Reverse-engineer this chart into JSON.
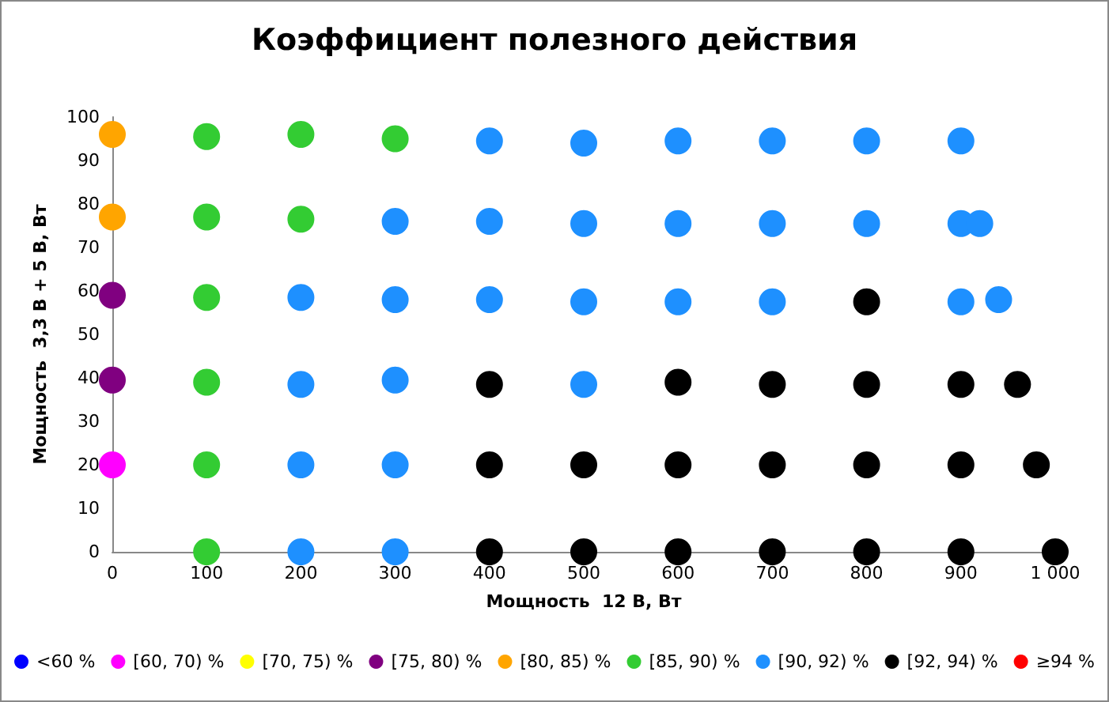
{
  "chart_data": {
    "type": "scatter",
    "title": "Коэффициент полезного действия",
    "xlabel": "Мощность  12 В, Вт",
    "ylabel": "Мощность  3,3 В + 5 В, Вт",
    "xlim": [
      0,
      1000
    ],
    "xticks": [
      0,
      100,
      200,
      300,
      400,
      500,
      600,
      700,
      800,
      900,
      {
        "value": 1000,
        "label": "1 000"
      }
    ],
    "ylim": [
      0,
      100
    ],
    "yticks": [
      0,
      10,
      20,
      30,
      40,
      50,
      60,
      70,
      80,
      90,
      100
    ],
    "grid": false,
    "legend": "bottom",
    "marker": "circle",
    "series": [
      {
        "name": "<60 %",
        "color": "#0000ff"
      },
      {
        "name": "[60, 70) %",
        "color": "#ff00ff",
        "x": [
          0
        ],
        "values": [
          20
        ]
      },
      {
        "name": "[70, 75) %",
        "color": "#ffff00"
      },
      {
        "name": "[75, 80) %",
        "color": "#800080",
        "x": [
          0,
          0
        ],
        "values": [
          59,
          39.5
        ]
      },
      {
        "name": "[80, 85) %",
        "color": "#ffa500",
        "x": [
          0,
          0
        ],
        "values": [
          96,
          77
        ]
      },
      {
        "name": "[85, 90) %",
        "color": "#33cc33",
        "x": [
          100,
          200,
          300,
          100,
          200,
          100,
          100,
          100,
          100
        ],
        "values": [
          95.5,
          96,
          95,
          77,
          76.5,
          58.5,
          39,
          20,
          0
        ]
      },
      {
        "name": "[90, 92) %",
        "color": "#1e90ff",
        "x": [
          400,
          500,
          600,
          700,
          800,
          900,
          300,
          400,
          500,
          600,
          700,
          800,
          900,
          920,
          200,
          300,
          400,
          500,
          600,
          700,
          900,
          940,
          200,
          300,
          500,
          200,
          300,
          200,
          300
        ],
        "values": [
          94.5,
          94,
          94.5,
          94.5,
          94.5,
          94.5,
          76,
          76,
          75.5,
          75.5,
          75.5,
          75.5,
          75.5,
          75.5,
          58.5,
          58,
          58,
          57.5,
          57.5,
          57.5,
          57.5,
          58,
          38.5,
          39.5,
          38.5,
          20,
          20,
          0,
          0
        ]
      },
      {
        "name": "[92, 94) %",
        "color": "#000000",
        "x": [
          800,
          400,
          600,
          700,
          800,
          900,
          960,
          400,
          500,
          600,
          700,
          800,
          900,
          980,
          400,
          500,
          600,
          700,
          800,
          900,
          1000
        ],
        "values": [
          57.5,
          38.5,
          39,
          38.5,
          38.5,
          38.5,
          38.5,
          20,
          20,
          20,
          20,
          20,
          20,
          20,
          0,
          0,
          0,
          0,
          0,
          0,
          0
        ]
      },
      {
        "name": "≥94 %",
        "color": "#ff0000"
      }
    ]
  }
}
